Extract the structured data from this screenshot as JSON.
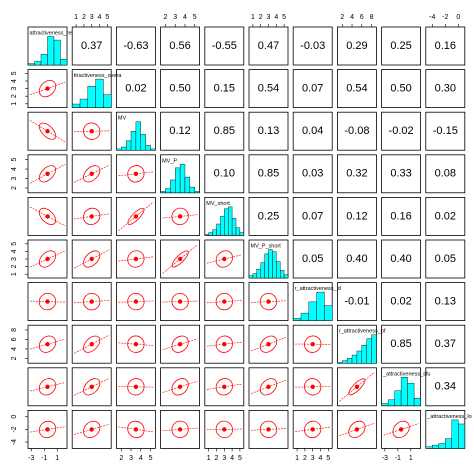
{
  "chart_data": {
    "type": "pairs",
    "point_color": "#000000",
    "ellipse_color": "#ff0000",
    "hist_color": "#00ffff",
    "variables": [
      {
        "name": "attractiveness_rel",
        "lim": [
          -3.5,
          2.5
        ],
        "ticks": [
          -3,
          -1,
          1
        ],
        "bins": [
          -3.5,
          -2.5,
          -1.5,
          -0.5,
          0.5,
          1.5,
          2.5
        ],
        "counts": [
          2,
          5,
          15,
          40,
          35,
          8
        ]
      },
      {
        "name": "ttractiveness_overa",
        "lim": [
          0.5,
          5.5
        ],
        "ticks": [
          1,
          2,
          3,
          4,
          5
        ],
        "bins": [
          0.5,
          1.5,
          2.5,
          3.5,
          4.5,
          5.5
        ],
        "counts": [
          5,
          12,
          30,
          40,
          18
        ]
      },
      {
        "name": "MV",
        "lim": [
          1.5,
          5.5
        ],
        "ticks": [
          2,
          3,
          4,
          5
        ],
        "bins": [
          1.5,
          2,
          2.5,
          3,
          3.5,
          4,
          4.5,
          5,
          5.5
        ],
        "counts": [
          2,
          5,
          15,
          30,
          45,
          25,
          8,
          2
        ]
      },
      {
        "name": "MV_P",
        "lim": [
          1.5,
          5.5
        ],
        "ticks": [
          2,
          3,
          4,
          5
        ],
        "bins": [
          1.5,
          2,
          2.5,
          3,
          3.5,
          4,
          4.5,
          5,
          5.5
        ],
        "counts": [
          2,
          6,
          18,
          35,
          40,
          22,
          8,
          2
        ]
      },
      {
        "name": "MV_short",
        "lim": [
          0.5,
          5.5
        ],
        "ticks": [
          1,
          2,
          3,
          4,
          5
        ],
        "bins": [
          0.5,
          1,
          1.5,
          2,
          2.5,
          3,
          3.5,
          4,
          4.5,
          5,
          5.5
        ],
        "counts": [
          1,
          3,
          6,
          12,
          20,
          28,
          30,
          18,
          8,
          3
        ]
      },
      {
        "name": "MV_P_short",
        "lim": [
          0.5,
          5.5
        ],
        "ticks": [
          1,
          2,
          3,
          4,
          5
        ],
        "bins": [
          0.5,
          1,
          1.5,
          2,
          2.5,
          3,
          3.5,
          4,
          4.5,
          5,
          5.5
        ],
        "counts": [
          2,
          4,
          8,
          14,
          22,
          26,
          24,
          15,
          7,
          3
        ]
      },
      {
        "name": "r_attractiveness_id",
        "lim": [
          0.5,
          5.5
        ],
        "ticks": [
          1,
          2,
          3,
          4,
          5
        ],
        "bins": [
          0.5,
          1.5,
          2.5,
          3.5,
          4.5,
          5.5
        ],
        "counts": [
          3,
          10,
          25,
          38,
          20
        ]
      },
      {
        "name": "r_attractiveness_pf",
        "lim": [
          1,
          9
        ],
        "ticks": [
          2,
          4,
          6,
          8
        ],
        "bins": [
          1,
          2,
          3,
          4,
          5,
          6,
          7,
          8,
          9
        ],
        "counts": [
          1,
          3,
          6,
          10,
          15,
          22,
          30,
          35
        ]
      },
      {
        "name": "_attractiveness_sfu",
        "lim": [
          -3.5,
          2.5
        ],
        "ticks": [
          -3,
          -1,
          1
        ],
        "bins": [
          -3.5,
          -2.5,
          -1.5,
          -0.5,
          0.5,
          1.5,
          2.5
        ],
        "counts": [
          3,
          8,
          20,
          38,
          30,
          10
        ]
      },
      {
        "name": "_attractiveness_lo",
        "lim": [
          -5,
          1
        ],
        "ticks": [
          -4,
          -2,
          0
        ],
        "bins": [
          -5,
          -4,
          -3,
          -2,
          -1,
          0,
          1
        ],
        "counts": [
          2,
          4,
          6,
          12,
          35,
          30
        ]
      }
    ],
    "correlations": [
      [
        0.37,
        -0.63,
        0.56,
        -0.55,
        0.47,
        -0.03,
        0.29,
        0.25,
        0.16
      ],
      [
        0.02,
        0.5,
        0.15,
        0.54,
        0.07,
        0.54,
        0.5,
        0.3
      ],
      [
        0.12,
        0.85,
        0.13,
        0.04,
        -0.08,
        -0.02,
        -0.15
      ],
      [
        0.1,
        0.85,
        0.03,
        0.32,
        0.33,
        0.08
      ],
      [
        0.25,
        0.07,
        0.12,
        0.16,
        0.02
      ],
      [
        0.05,
        0.4,
        0.4,
        0.05
      ],
      [
        -0.01,
        0.02,
        0.13
      ],
      [
        0.85,
        0.37
      ],
      [
        0.34
      ]
    ],
    "correlation_labels": [
      [
        "0.37",
        "-0.63",
        "0.56",
        "-0.55",
        "0.47",
        "-0.03",
        "0.29",
        "0.25",
        "0.16"
      ],
      [
        "0.02",
        "0.50",
        "0.15",
        "0.54",
        "0.07",
        "0.54",
        "0.50",
        "0.30"
      ],
      [
        "0.12",
        "0.85",
        "0.13",
        "0.04",
        "-0.08",
        "-0.02",
        "-0.15"
      ],
      [
        "0.10",
        "0.85",
        "0.03",
        "0.32",
        "0.33",
        "0.08"
      ],
      [
        "0.25",
        "0.07",
        "0.12",
        "0.16",
        "0.02"
      ],
      [
        "0.05",
        "0.40",
        "0.40",
        "0.05"
      ],
      [
        "-0.01",
        "0.02",
        "0.13"
      ],
      [
        "0.85",
        "0.37"
      ],
      [
        "0.34"
      ]
    ]
  }
}
